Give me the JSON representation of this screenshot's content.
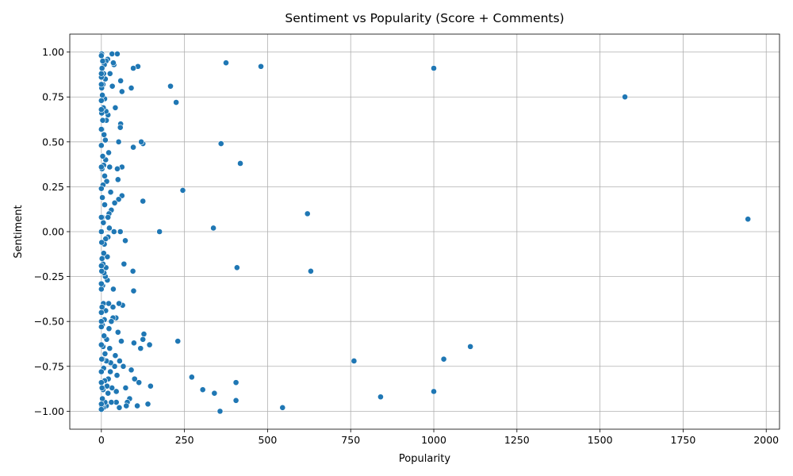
{
  "chart_data": {
    "type": "scatter",
    "title": "Sentiment vs Popularity (Score + Comments)",
    "xlabel": "Popularity",
    "ylabel": "Sentiment",
    "xlim": [
      -95,
      2040
    ],
    "ylim": [
      -1.1,
      1.1
    ],
    "xticks": [
      0,
      250,
      500,
      750,
      1000,
      1250,
      1500,
      1750,
      2000
    ],
    "yticks": [
      -1.0,
      -0.75,
      -0.5,
      -0.25,
      0.0,
      0.25,
      0.5,
      0.75,
      1.0
    ],
    "xtick_labels": [
      "0",
      "250",
      "500",
      "750",
      "1000",
      "1250",
      "1500",
      "1750",
      "2000"
    ],
    "ytick_labels": [
      "−1.00",
      "−0.75",
      "−0.50",
      "−0.25",
      "0.00",
      "0.25",
      "0.50",
      "0.75",
      "1.00"
    ],
    "grid": true,
    "color": "#1f77b4",
    "points": [
      [
        1945,
        0.07
      ],
      [
        1575,
        0.75
      ],
      [
        1110,
        -0.64
      ],
      [
        1030,
        -0.71
      ],
      [
        1000,
        0.91
      ],
      [
        1000,
        -0.89
      ],
      [
        840,
        -0.92
      ],
      [
        760,
        -0.72
      ],
      [
        630,
        -0.22
      ],
      [
        620,
        0.1
      ],
      [
        545,
        -0.98
      ],
      [
        480,
        0.92
      ],
      [
        418,
        0.38
      ],
      [
        408,
        -0.2
      ],
      [
        405,
        -0.84
      ],
      [
        405,
        -0.94
      ],
      [
        375,
        0.94
      ],
      [
        360,
        0.49
      ],
      [
        357,
        -1.0
      ],
      [
        340,
        -0.9
      ],
      [
        337,
        0.02
      ],
      [
        305,
        -0.88
      ],
      [
        272,
        -0.81
      ],
      [
        245,
        0.23
      ],
      [
        230,
        -0.61
      ],
      [
        225,
        0.72
      ],
      [
        208,
        0.81
      ],
      [
        175,
        0.0
      ],
      [
        148,
        -0.86
      ],
      [
        145,
        -0.63
      ],
      [
        140,
        -0.96
      ],
      [
        128,
        -0.57
      ],
      [
        125,
        -0.6
      ],
      [
        125,
        0.49
      ],
      [
        125,
        0.17
      ],
      [
        120,
        0.5
      ],
      [
        118,
        -0.65
      ],
      [
        113,
        -0.84
      ],
      [
        110,
        0.92
      ],
      [
        108,
        -0.97
      ],
      [
        100,
        -0.82
      ],
      [
        98,
        -0.62
      ],
      [
        96,
        0.91
      ],
      [
        96,
        0.47
      ],
      [
        95,
        -0.22
      ],
      [
        97,
        -0.33
      ],
      [
        90,
        0.8
      ],
      [
        90,
        -0.77
      ],
      [
        85,
        -0.93
      ],
      [
        78,
        -0.95
      ],
      [
        75,
        -0.97
      ],
      [
        73,
        -0.87
      ],
      [
        72,
        -0.05
      ],
      [
        68,
        -0.18
      ],
      [
        66,
        -0.75
      ],
      [
        64,
        -0.41
      ],
      [
        62,
        0.36
      ],
      [
        62,
        0.78
      ],
      [
        62,
        0.2
      ],
      [
        60,
        -0.61
      ],
      [
        58,
        0.84
      ],
      [
        58,
        0.6
      ],
      [
        57,
        0.58
      ],
      [
        57,
        0.0
      ],
      [
        55,
        -0.72
      ],
      [
        54,
        -0.98
      ],
      [
        53,
        -0.4
      ],
      [
        52,
        0.5
      ],
      [
        52,
        0.18
      ],
      [
        50,
        0.29
      ],
      [
        50,
        -0.56
      ],
      [
        48,
        0.35
      ],
      [
        48,
        0.99
      ],
      [
        47,
        -0.8
      ],
      [
        45,
        -0.95
      ],
      [
        45,
        -0.89
      ],
      [
        44,
        -0.48
      ],
      [
        42,
        0.69
      ],
      [
        42,
        -0.69
      ],
      [
        40,
        0.16
      ],
      [
        40,
        -0.75
      ],
      [
        38,
        0.93
      ],
      [
        38,
        0.0
      ],
      [
        36,
        -0.32
      ],
      [
        36,
        0.94
      ],
      [
        35,
        -0.42
      ],
      [
        35,
        -0.48
      ],
      [
        33,
        0.81
      ],
      [
        32,
        0.99
      ],
      [
        32,
        -0.87
      ],
      [
        30,
        -0.95
      ],
      [
        30,
        0.12
      ],
      [
        30,
        -0.5
      ],
      [
        28,
        0.22
      ],
      [
        28,
        -0.73
      ],
      [
        27,
        -0.78
      ],
      [
        26,
        0.88
      ],
      [
        25,
        0.36
      ],
      [
        25,
        -0.65
      ],
      [
        24,
        0.02
      ],
      [
        23,
        -0.54
      ],
      [
        23,
        0.1
      ],
      [
        22,
        0.44
      ],
      [
        22,
        -0.4
      ],
      [
        21,
        -0.82
      ],
      [
        20,
        -0.03
      ],
      [
        20,
        0.08
      ],
      [
        20,
        0.65
      ],
      [
        20,
        -0.9
      ],
      [
        19,
        0.96
      ],
      [
        18,
        -0.27
      ],
      [
        18,
        -0.14
      ],
      [
        17,
        -0.86
      ],
      [
        16,
        0.28
      ],
      [
        16,
        -0.6
      ],
      [
        15,
        -0.97
      ],
      [
        15,
        -0.72
      ],
      [
        15,
        0.62
      ],
      [
        14,
        0.67
      ],
      [
        14,
        -0.2
      ],
      [
        14,
        0.95
      ],
      [
        13,
        -0.04
      ],
      [
        13,
        0.4
      ],
      [
        13,
        -0.44
      ],
      [
        12,
        0.85
      ],
      [
        12,
        -0.25
      ],
      [
        12,
        0.51
      ],
      [
        11,
        -0.95
      ],
      [
        11,
        -0.68
      ],
      [
        10,
        0.31
      ],
      [
        10,
        0.74
      ],
      [
        10,
        -0.83
      ],
      [
        10,
        0.15
      ],
      [
        9,
        -0.07
      ],
      [
        9,
        0.93
      ],
      [
        9,
        -0.49
      ],
      [
        8,
        -0.58
      ],
      [
        8,
        0.54
      ],
      [
        8,
        -0.23
      ],
      [
        7,
        0.37
      ],
      [
        7,
        -0.76
      ],
      [
        7,
        0.88
      ],
      [
        7,
        -0.12
      ],
      [
        6,
        0.69
      ],
      [
        6,
        -0.98
      ],
      [
        6,
        -0.4
      ],
      [
        6,
        0.05
      ],
      [
        5,
        -0.88
      ],
      [
        5,
        0.82
      ],
      [
        5,
        -0.64
      ],
      [
        5,
        0.26
      ],
      [
        5,
        -0.18
      ],
      [
        4,
        0.42
      ],
      [
        4,
        0.95
      ],
      [
        4,
        -0.3
      ],
      [
        4,
        -0.71
      ],
      [
        4,
        0.62
      ],
      [
        3,
        0.08
      ],
      [
        3,
        -0.52
      ],
      [
        3,
        0.76
      ],
      [
        3,
        -0.93
      ],
      [
        3,
        0.19
      ],
      [
        2,
        -0.15
      ],
      [
        2,
        0.57
      ],
      [
        2,
        -0.87
      ],
      [
        2,
        0.91
      ],
      [
        2,
        -0.42
      ],
      [
        2,
        0.35
      ],
      [
        1,
        -0.06
      ],
      [
        1,
        0.99
      ],
      [
        1,
        -0.97
      ],
      [
        1,
        0.8
      ],
      [
        1,
        -0.22
      ],
      [
        1,
        0.0
      ],
      [
        1,
        -0.71
      ],
      [
        1,
        0.66
      ],
      [
        0,
        -0.96
      ],
      [
        0,
        -0.53
      ],
      [
        0,
        0.86
      ],
      [
        0,
        0.24
      ],
      [
        0,
        -0.32
      ],
      [
        0,
        0.73
      ],
      [
        0,
        -0.84
      ],
      [
        0,
        0.57
      ],
      [
        0,
        -0.45
      ],
      [
        0,
        0.98
      ],
      [
        0,
        0.0
      ],
      [
        0,
        -0.29
      ],
      [
        0,
        0.82
      ],
      [
        0,
        -0.63
      ],
      [
        0,
        0.36
      ],
      [
        0,
        -0.78
      ],
      [
        0,
        0.08
      ],
      [
        0,
        0.88
      ],
      [
        0,
        -0.19
      ],
      [
        0,
        -0.99
      ],
      [
        0,
        0.68
      ],
      [
        0,
        -0.5
      ],
      [
        0,
        0.48
      ]
    ]
  }
}
